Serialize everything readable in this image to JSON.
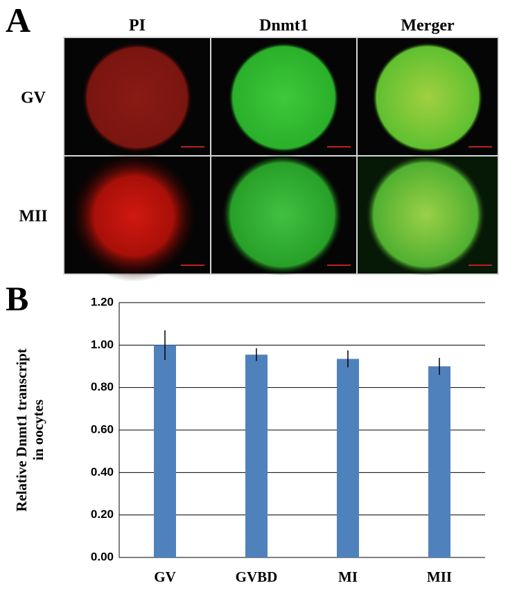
{
  "panels": {
    "a": "A",
    "b": "B"
  },
  "image_grid": {
    "columns": [
      "PI",
      "Dnmt1",
      "Merger"
    ],
    "rows": [
      "GV",
      "MII"
    ]
  },
  "chart_data": {
    "type": "bar",
    "ylabel": [
      "Relative Dnmt1 transcript",
      "in oocytes"
    ],
    "categories": [
      "GV",
      "GVBD",
      "MI",
      "MII"
    ],
    "values": [
      1.0,
      0.955,
      0.935,
      0.9
    ],
    "errors": [
      0.07,
      0.03,
      0.04,
      0.04
    ],
    "color": "#4f81bd",
    "ylim": [
      0,
      1.2
    ],
    "yticks": [
      {
        "value": 0,
        "label": "0.00"
      },
      {
        "value": 0.2,
        "label": "0.20"
      },
      {
        "value": 0.4,
        "label": "0.40"
      },
      {
        "value": 0.6,
        "label": "0.60"
      },
      {
        "value": 0.8,
        "label": "0.80"
      },
      {
        "value": 1.0,
        "label": "1.00"
      },
      {
        "value": 1.2,
        "label": "1.20"
      }
    ],
    "grid": true
  }
}
